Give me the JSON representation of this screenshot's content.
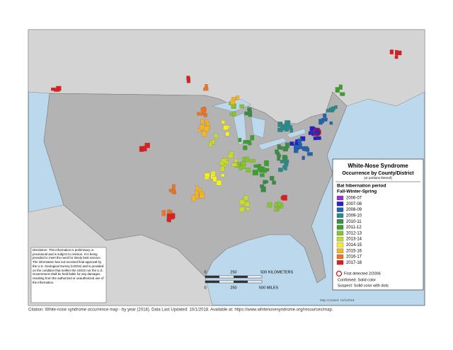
{
  "map": {
    "legend": {
      "title": "White-Nose Syndrome",
      "subtitle": "Occurrence by County/District",
      "note": "(or portions thereof)",
      "period_title": "Bat hibernation period",
      "period_subtitle": "Fall-Winter-Spring",
      "items": [
        {
          "label": "2006-07",
          "color": "#9b2fd6"
        },
        {
          "label": "2007-08",
          "color": "#2222cc"
        },
        {
          "label": "2008-09",
          "color": "#1f63b0"
        },
        {
          "label": "2009-10",
          "color": "#2a8a8a"
        },
        {
          "label": "2010-11",
          "color": "#3a8c44"
        },
        {
          "label": "2011-12",
          "color": "#3ea02c"
        },
        {
          "label": "2012-13",
          "color": "#86c530"
        },
        {
          "label": "2013-14",
          "color": "#c8dc30"
        },
        {
          "label": "2014-15",
          "color": "#f6f022"
        },
        {
          "label": "2015-16",
          "color": "#f7b524"
        },
        {
          "label": "2016-17",
          "color": "#ef7320"
        },
        {
          "label": "2017-18",
          "color": "#dc1e1e"
        }
      ],
      "first_detected": "First detected 2/2006",
      "confirmed": "Confirmed:  Solid color",
      "suspect": "Suspect:  Solid color with dots"
    },
    "disclaimer": "Disclaimer: This information is preliminary or provisional and is subject to revision. It is being provided to meet the need for timely best science. The information has not received final approval by the U.S. Geological Survey (USGS) and is provided on the condition that neither the USGS nor the U.S. Government shall be held liable for any damages resulting from the authorized or unauthorized use of the information.",
    "scale": {
      "km": [
        "0",
        "250",
        "500 KILOMETERS"
      ],
      "miles": [
        "0",
        "250",
        "500 MILES"
      ]
    },
    "map_created": "Map Created:  10/1/2018"
  },
  "citation": "Citation: White-nose syndrome occurrence map - by year (2018).  Data Last Updated: 10/1/2018. Available at: https://www.whitenosesyndrome.org/resources/map."
}
